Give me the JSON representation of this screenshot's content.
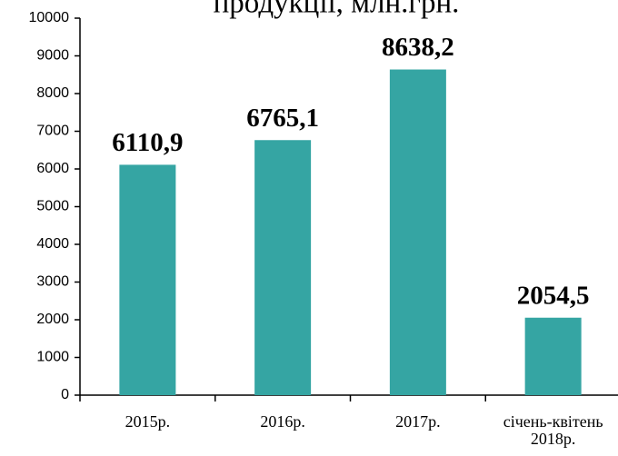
{
  "chart_data": {
    "type": "bar",
    "title": "продукції, млн.грн.",
    "categories": [
      "2015р.",
      "2016р.",
      "2017р.",
      "січень-квітень 2018р."
    ],
    "values": [
      6110.9,
      6765.1,
      8638.2,
      2054.5
    ],
    "value_labels": [
      "6110,9",
      "6765,1",
      "8638,2",
      "2054,5"
    ],
    "color": "#35a5a3",
    "ylim": [
      0,
      10000
    ],
    "yticks": [
      0,
      1000,
      2000,
      3000,
      4000,
      5000,
      6000,
      7000,
      8000,
      9000,
      10000
    ]
  }
}
